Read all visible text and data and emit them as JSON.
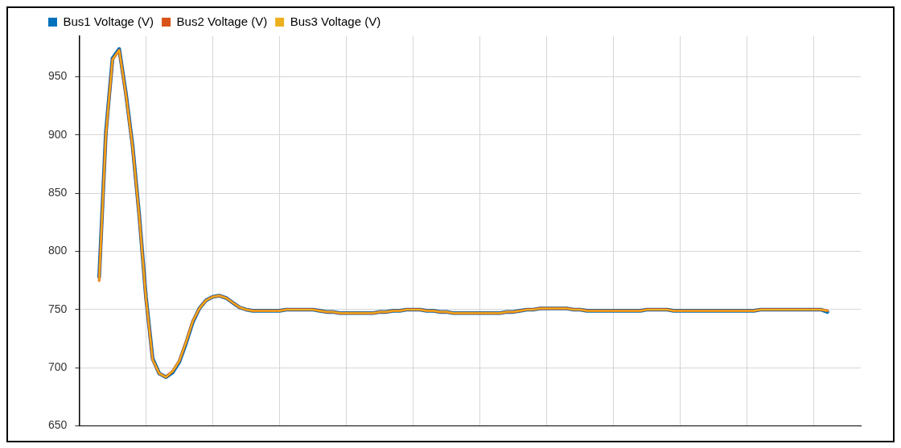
{
  "chart_data": {
    "type": "line",
    "categories": [
      null,
      null,
      null,
      null,
      null,
      null,
      null,
      null,
      null,
      null,
      null,
      null,
      null,
      null,
      null,
      null,
      null,
      null,
      null,
      null,
      null,
      null,
      null,
      null,
      null,
      null,
      null,
      null,
      null,
      null,
      null,
      null,
      null,
      null,
      null,
      null,
      null,
      null,
      null,
      null,
      null,
      null,
      null,
      null,
      null,
      null,
      null,
      null,
      null,
      null,
      null,
      null,
      null,
      null,
      null,
      null,
      null,
      null,
      null,
      null,
      null,
      null,
      null,
      null,
      null,
      null,
      null,
      null,
      null,
      null,
      null,
      null,
      null,
      null,
      null,
      null,
      null,
      null,
      null,
      null,
      null,
      null,
      null,
      null,
      null,
      null,
      null,
      null,
      null,
      null,
      null,
      null,
      null,
      null,
      null,
      null,
      null,
      null,
      null,
      null,
      null,
      null,
      null,
      null,
      null,
      null,
      null,
      null,
      null,
      null,
      null,
      null,
      null,
      null,
      null,
      null,
      null,
      null
    ],
    "series": [
      {
        "name": "Bus1 Voltage (V)",
        "color": "#0072bd",
        "values": [
          null,
          null,
          null,
          778,
          902,
          966,
          974,
          936,
          891,
          831,
          761,
          708,
          695,
          692,
          696,
          705,
          721,
          739,
          751,
          758,
          761,
          762,
          760,
          756,
          752,
          750,
          749,
          749,
          749,
          749,
          749,
          750,
          750,
          750,
          750,
          750,
          749,
          748,
          748,
          747,
          747,
          747,
          747,
          747,
          747,
          748,
          748,
          749,
          749,
          750,
          750,
          750,
          749,
          749,
          748,
          748,
          747,
          747,
          747,
          747,
          747,
          747,
          747,
          747,
          748,
          748,
          749,
          750,
          750,
          751,
          751,
          751,
          751,
          751,
          750,
          750,
          749,
          749,
          749,
          749,
          749,
          749,
          749,
          749,
          749,
          750,
          750,
          750,
          750,
          749,
          749,
          749,
          749,
          749,
          749,
          749,
          749,
          749,
          749,
          749,
          749,
          749,
          750,
          750,
          750,
          750,
          750,
          750,
          750,
          750,
          750,
          750,
          748,
          null,
          null,
          null,
          null,
          null
        ]
      },
      {
        "name": "Bus2 Voltage (V)",
        "color": "#d95319",
        "values": [
          null,
          null,
          null,
          775,
          900,
          965,
          973,
          935,
          890,
          830,
          760,
          707,
          695,
          692,
          697,
          706,
          722,
          740,
          751,
          758,
          761,
          762,
          760,
          756,
          752,
          750,
          749,
          749,
          749,
          749,
          749,
          750,
          750,
          750,
          750,
          750,
          749,
          748,
          748,
          747,
          747,
          747,
          747,
          747,
          747,
          748,
          748,
          749,
          749,
          750,
          750,
          750,
          749,
          749,
          748,
          748,
          747,
          747,
          747,
          747,
          747,
          747,
          747,
          747,
          748,
          748,
          749,
          750,
          750,
          751,
          751,
          751,
          751,
          751,
          750,
          750,
          749,
          749,
          749,
          749,
          749,
          749,
          749,
          749,
          749,
          750,
          750,
          750,
          750,
          749,
          749,
          749,
          749,
          749,
          749,
          749,
          749,
          749,
          749,
          749,
          749,
          749,
          750,
          750,
          750,
          750,
          750,
          750,
          750,
          750,
          750,
          750,
          749,
          null,
          null,
          null,
          null,
          null
        ]
      },
      {
        "name": "Bus3 Voltage (V)",
        "color": "#edb120",
        "values": [
          null,
          null,
          null,
          775,
          900,
          965,
          973,
          935,
          890,
          830,
          760,
          707,
          695,
          692,
          697,
          706,
          722,
          740,
          751,
          758,
          761,
          762,
          760,
          756,
          752,
          750,
          749,
          749,
          749,
          749,
          749,
          750,
          750,
          750,
          750,
          750,
          749,
          748,
          748,
          747,
          747,
          747,
          747,
          747,
          747,
          748,
          748,
          749,
          749,
          750,
          750,
          750,
          749,
          749,
          748,
          748,
          747,
          747,
          747,
          747,
          747,
          747,
          747,
          747,
          748,
          748,
          749,
          750,
          750,
          751,
          751,
          751,
          751,
          751,
          750,
          750,
          749,
          749,
          749,
          749,
          749,
          749,
          749,
          749,
          749,
          750,
          750,
          750,
          750,
          749,
          749,
          749,
          749,
          749,
          749,
          749,
          749,
          749,
          749,
          749,
          749,
          749,
          750,
          750,
          750,
          750,
          750,
          750,
          750,
          750,
          750,
          750,
          749,
          null,
          null,
          null,
          null,
          null
        ]
      }
    ],
    "ylim": [
      650,
      985
    ],
    "yticks": [
      650,
      700,
      750,
      800,
      850,
      900,
      950
    ],
    "grid": true,
    "legend": "top left",
    "tick_labels": "y",
    "marker": "none",
    "line_style": "solid"
  }
}
